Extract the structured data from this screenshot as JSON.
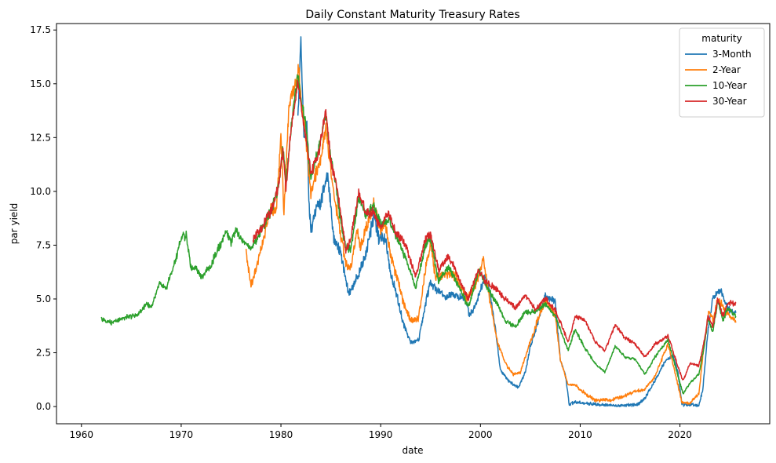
{
  "chart_data": {
    "type": "line",
    "title": "Daily Constant Maturity Treasury Rates",
    "xlabel": "date",
    "ylabel": "par yield",
    "xlim": [
      1957.5,
      2029.0
    ],
    "ylim": [
      -0.8,
      17.8
    ],
    "x_ticks": [
      1960,
      1970,
      1980,
      1990,
      2000,
      2010,
      2020
    ],
    "y_ticks": [
      0.0,
      2.5,
      5.0,
      7.5,
      10.0,
      12.5,
      15.0,
      17.5
    ],
    "y_tick_labels": [
      "0.0",
      "2.5",
      "5.0",
      "7.5",
      "10.0",
      "12.5",
      "15.0",
      "17.5"
    ],
    "legend": {
      "title": "maturity",
      "position": "top-right"
    },
    "grid": false,
    "series": [
      {
        "name": "3-Month",
        "color": "#1f77b4",
        "points": [
          [
            1981.7,
            13.5
          ],
          [
            1982.0,
            17.0
          ],
          [
            1982.3,
            12.5
          ],
          [
            1982.6,
            13.2
          ],
          [
            1982.8,
            9.5
          ],
          [
            1983.0,
            8.2
          ],
          [
            1983.5,
            9.2
          ],
          [
            1984.0,
            9.5
          ],
          [
            1984.7,
            10.8
          ],
          [
            1985.3,
            7.8
          ],
          [
            1986.0,
            7.1
          ],
          [
            1986.8,
            5.2
          ],
          [
            1987.3,
            5.7
          ],
          [
            1987.8,
            6.2
          ],
          [
            1988.5,
            7.0
          ],
          [
            1989.3,
            8.9
          ],
          [
            1989.8,
            7.8
          ],
          [
            1990.5,
            7.8
          ],
          [
            1991.0,
            6.2
          ],
          [
            1991.7,
            5.0
          ],
          [
            1992.3,
            3.8
          ],
          [
            1993.0,
            3.0
          ],
          [
            1993.8,
            3.1
          ],
          [
            1994.5,
            4.8
          ],
          [
            1995.0,
            5.8
          ],
          [
            1995.5,
            5.5
          ],
          [
            1996.5,
            5.1
          ],
          [
            1997.5,
            5.2
          ],
          [
            1998.5,
            5.1
          ],
          [
            1998.9,
            4.2
          ],
          [
            1999.5,
            4.7
          ],
          [
            2000.5,
            6.1
          ],
          [
            2001.0,
            5.2
          ],
          [
            2001.5,
            3.6
          ],
          [
            2002.0,
            1.7
          ],
          [
            2003.0,
            1.1
          ],
          [
            2003.8,
            0.9
          ],
          [
            2004.5,
            1.6
          ],
          [
            2005.0,
            2.8
          ],
          [
            2005.8,
            4.0
          ],
          [
            2006.5,
            5.1
          ],
          [
            2007.5,
            4.9
          ],
          [
            2008.0,
            2.2
          ],
          [
            2008.5,
            1.5
          ],
          [
            2008.9,
            0.1
          ],
          [
            2009.5,
            0.2
          ],
          [
            2010.5,
            0.15
          ],
          [
            2012.0,
            0.08
          ],
          [
            2014.0,
            0.03
          ],
          [
            2015.8,
            0.1
          ],
          [
            2016.5,
            0.4
          ],
          [
            2017.5,
            1.2
          ],
          [
            2018.5,
            2.1
          ],
          [
            2019.3,
            2.4
          ],
          [
            2019.8,
            1.6
          ],
          [
            2020.2,
            0.1
          ],
          [
            2021.0,
            0.08
          ],
          [
            2021.9,
            0.05
          ],
          [
            2022.3,
            0.8
          ],
          [
            2022.8,
            3.5
          ],
          [
            2023.3,
            5.0
          ],
          [
            2024.0,
            5.45
          ],
          [
            2024.8,
            4.6
          ],
          [
            2025.2,
            4.35
          ],
          [
            2025.6,
            4.35
          ]
        ]
      },
      {
        "name": "2-Year",
        "color": "#ff7f0e",
        "points": [
          [
            1976.5,
            7.2
          ],
          [
            1977.0,
            5.6
          ],
          [
            1977.5,
            6.4
          ],
          [
            1978.0,
            7.3
          ],
          [
            1978.5,
            8.3
          ],
          [
            1979.0,
            9.3
          ],
          [
            1979.5,
            9.0
          ],
          [
            1980.0,
            12.5
          ],
          [
            1980.3,
            9.0
          ],
          [
            1980.8,
            14.0
          ],
          [
            1981.0,
            14.5
          ],
          [
            1981.5,
            15.0
          ],
          [
            1981.8,
            15.8
          ],
          [
            1982.0,
            14.2
          ],
          [
            1982.3,
            13.5
          ],
          [
            1982.6,
            12.0
          ],
          [
            1983.0,
            9.8
          ],
          [
            1983.5,
            10.8
          ],
          [
            1984.0,
            11.5
          ],
          [
            1984.5,
            13.0
          ],
          [
            1985.0,
            11.0
          ],
          [
            1985.5,
            9.3
          ],
          [
            1986.0,
            8.0
          ],
          [
            1986.5,
            6.6
          ],
          [
            1987.0,
            6.4
          ],
          [
            1987.6,
            8.2
          ],
          [
            1988.0,
            7.4
          ],
          [
            1988.5,
            8.2
          ],
          [
            1989.3,
            9.4
          ],
          [
            1990.0,
            8.1
          ],
          [
            1990.5,
            8.5
          ],
          [
            1991.0,
            7.0
          ],
          [
            1991.7,
            5.9
          ],
          [
            1992.3,
            4.8
          ],
          [
            1993.0,
            4.0
          ],
          [
            1993.8,
            4.1
          ],
          [
            1994.5,
            6.4
          ],
          [
            1995.0,
            7.6
          ],
          [
            1995.5,
            6.0
          ],
          [
            1996.5,
            6.2
          ],
          [
            1997.5,
            6.1
          ],
          [
            1998.5,
            5.0
          ],
          [
            1999.5,
            5.6
          ],
          [
            2000.3,
            6.8
          ],
          [
            2001.0,
            4.8
          ],
          [
            2001.7,
            3.0
          ],
          [
            2002.5,
            2.0
          ],
          [
            2003.3,
            1.5
          ],
          [
            2004.0,
            1.6
          ],
          [
            2004.7,
            2.6
          ],
          [
            2005.5,
            3.7
          ],
          [
            2006.5,
            5.0
          ],
          [
            2007.5,
            4.2
          ],
          [
            2008.0,
            2.2
          ],
          [
            2008.8,
            1.0
          ],
          [
            2009.5,
            1.0
          ],
          [
            2010.5,
            0.6
          ],
          [
            2011.5,
            0.3
          ],
          [
            2013.0,
            0.3
          ],
          [
            2014.5,
            0.5
          ],
          [
            2015.5,
            0.7
          ],
          [
            2016.5,
            0.8
          ],
          [
            2017.5,
            1.4
          ],
          [
            2018.8,
            2.9
          ],
          [
            2019.5,
            1.6
          ],
          [
            2020.2,
            0.2
          ],
          [
            2021.0,
            0.15
          ],
          [
            2021.9,
            0.6
          ],
          [
            2022.4,
            2.8
          ],
          [
            2022.9,
            4.5
          ],
          [
            2023.3,
            4.0
          ],
          [
            2023.8,
            5.0
          ],
          [
            2024.5,
            4.5
          ],
          [
            2025.0,
            4.2
          ],
          [
            2025.6,
            3.9
          ]
        ]
      },
      {
        "name": "10-Year",
        "color": "#2ca02c",
        "points": [
          [
            1962.0,
            4.05
          ],
          [
            1963.0,
            3.9
          ],
          [
            1964.0,
            4.1
          ],
          [
            1965.0,
            4.2
          ],
          [
            1965.8,
            4.3
          ],
          [
            1966.5,
            4.8
          ],
          [
            1967.0,
            4.6
          ],
          [
            1967.8,
            5.7
          ],
          [
            1968.5,
            5.5
          ],
          [
            1969.5,
            6.9
          ],
          [
            1970.0,
            7.8
          ],
          [
            1970.5,
            8.0
          ],
          [
            1971.0,
            6.4
          ],
          [
            1971.5,
            6.5
          ],
          [
            1972.0,
            6.0
          ],
          [
            1973.0,
            6.6
          ],
          [
            1973.8,
            7.4
          ],
          [
            1974.5,
            8.2
          ],
          [
            1975.0,
            7.6
          ],
          [
            1975.5,
            8.2
          ],
          [
            1976.0,
            7.8
          ],
          [
            1977.0,
            7.3
          ],
          [
            1978.0,
            8.2
          ],
          [
            1979.0,
            9.1
          ],
          [
            1979.8,
            10.3
          ],
          [
            1980.2,
            12.0
          ],
          [
            1980.5,
            10.4
          ],
          [
            1981.0,
            12.9
          ],
          [
            1981.7,
            15.5
          ],
          [
            1982.0,
            14.3
          ],
          [
            1982.5,
            13.1
          ],
          [
            1983.0,
            10.5
          ],
          [
            1983.5,
            11.5
          ],
          [
            1984.5,
            13.5
          ],
          [
            1985.0,
            11.6
          ],
          [
            1985.5,
            10.3
          ],
          [
            1986.0,
            8.5
          ],
          [
            1986.5,
            7.4
          ],
          [
            1987.0,
            7.3
          ],
          [
            1987.8,
            9.8
          ],
          [
            1988.5,
            8.9
          ],
          [
            1989.3,
            9.3
          ],
          [
            1990.0,
            8.5
          ],
          [
            1990.8,
            8.7
          ],
          [
            1991.5,
            8.0
          ],
          [
            1992.5,
            6.9
          ],
          [
            1993.5,
            5.5
          ],
          [
            1994.5,
            7.5
          ],
          [
            1995.0,
            7.8
          ],
          [
            1995.8,
            5.8
          ],
          [
            1996.8,
            6.5
          ],
          [
            1997.8,
            5.6
          ],
          [
            1998.8,
            4.6
          ],
          [
            1999.8,
            6.3
          ],
          [
            2000.5,
            5.7
          ],
          [
            2001.5,
            4.9
          ],
          [
            2002.5,
            4.0
          ],
          [
            2003.5,
            3.7
          ],
          [
            2004.5,
            4.4
          ],
          [
            2005.5,
            4.4
          ],
          [
            2006.5,
            4.8
          ],
          [
            2007.5,
            4.2
          ],
          [
            2008.8,
            2.6
          ],
          [
            2009.5,
            3.6
          ],
          [
            2010.5,
            2.7
          ],
          [
            2011.5,
            2.0
          ],
          [
            2012.5,
            1.6
          ],
          [
            2013.5,
            2.8
          ],
          [
            2014.5,
            2.3
          ],
          [
            2015.5,
            2.2
          ],
          [
            2016.5,
            1.5
          ],
          [
            2017.5,
            2.3
          ],
          [
            2018.8,
            3.1
          ],
          [
            2019.7,
            1.6
          ],
          [
            2020.3,
            0.6
          ],
          [
            2021.0,
            1.1
          ],
          [
            2021.9,
            1.5
          ],
          [
            2022.5,
            3.0
          ],
          [
            2022.8,
            4.1
          ],
          [
            2023.3,
            3.5
          ],
          [
            2023.8,
            4.9
          ],
          [
            2024.3,
            4.0
          ],
          [
            2024.8,
            4.6
          ],
          [
            2025.6,
            4.2
          ]
        ]
      },
      {
        "name": "30-Year",
        "color": "#d62728",
        "points": [
          [
            1977.2,
            7.7
          ],
          [
            1978.0,
            8.3
          ],
          [
            1979.0,
            9.1
          ],
          [
            1979.8,
            10.3
          ],
          [
            1980.2,
            12.0
          ],
          [
            1980.5,
            10.0
          ],
          [
            1981.0,
            12.9
          ],
          [
            1981.7,
            15.0
          ],
          [
            1982.0,
            14.0
          ],
          [
            1982.5,
            12.5
          ],
          [
            1983.0,
            10.8
          ],
          [
            1983.8,
            11.8
          ],
          [
            1984.5,
            13.8
          ],
          [
            1985.0,
            11.4
          ],
          [
            1985.5,
            10.5
          ],
          [
            1986.0,
            9.0
          ],
          [
            1986.5,
            7.2
          ],
          [
            1987.0,
            7.8
          ],
          [
            1987.8,
            10.0
          ],
          [
            1988.5,
            9.0
          ],
          [
            1989.3,
            9.0
          ],
          [
            1990.0,
            8.3
          ],
          [
            1990.8,
            9.0
          ],
          [
            1991.5,
            8.1
          ],
          [
            1992.5,
            7.5
          ],
          [
            1993.5,
            6.0
          ],
          [
            1994.5,
            7.8
          ],
          [
            1995.0,
            8.0
          ],
          [
            1995.8,
            6.3
          ],
          [
            1996.8,
            7.0
          ],
          [
            1997.8,
            6.0
          ],
          [
            1998.8,
            5.0
          ],
          [
            1999.8,
            6.4
          ],
          [
            2000.5,
            5.8
          ],
          [
            2001.5,
            5.5
          ],
          [
            2002.5,
            5.0
          ],
          [
            2003.5,
            4.6
          ],
          [
            2004.5,
            5.2
          ],
          [
            2005.5,
            4.5
          ],
          [
            2006.5,
            5.0
          ],
          [
            2007.5,
            4.5
          ],
          [
            2008.8,
            3.0
          ],
          [
            2009.5,
            4.2
          ],
          [
            2010.5,
            4.0
          ],
          [
            2011.5,
            3.0
          ],
          [
            2012.5,
            2.6
          ],
          [
            2013.5,
            3.8
          ],
          [
            2014.5,
            3.2
          ],
          [
            2015.5,
            2.9
          ],
          [
            2016.5,
            2.3
          ],
          [
            2017.5,
            2.9
          ],
          [
            2018.8,
            3.3
          ],
          [
            2019.7,
            2.0
          ],
          [
            2020.3,
            1.2
          ],
          [
            2021.0,
            2.0
          ],
          [
            2021.9,
            1.9
          ],
          [
            2022.5,
            3.2
          ],
          [
            2022.8,
            4.2
          ],
          [
            2023.3,
            3.7
          ],
          [
            2023.8,
            5.0
          ],
          [
            2024.3,
            4.2
          ],
          [
            2024.8,
            4.8
          ],
          [
            2025.6,
            4.8
          ]
        ]
      }
    ]
  }
}
